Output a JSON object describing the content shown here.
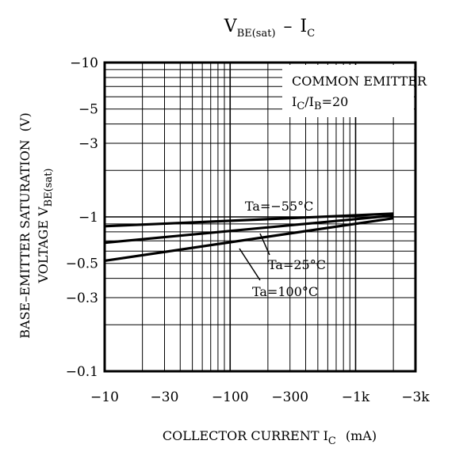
{
  "chart_data": {
    "type": "line",
    "title": {
      "main": "V",
      "main_sub": "BE(sat)",
      "dash": "–",
      "right": "I",
      "right_sub": "C"
    },
    "xlabel": {
      "text": "COLLECTOR CURRENT I",
      "sub": "C",
      "unit": "(mA)"
    },
    "ylabel": {
      "line1": "BASE–EMITTER SATURATION",
      "line1_unit": "(V)",
      "line2": "VOLTAGE V",
      "line2_sub": "BE(sat)"
    },
    "xscale": "log",
    "yscale": "log",
    "xlim": [
      -10,
      -3000
    ],
    "ylim": [
      -0.1,
      -10
    ],
    "grid": true,
    "x_ticks": [
      {
        "value": -10,
        "label": "−10"
      },
      {
        "value": -30,
        "label": "−30"
      },
      {
        "value": -100,
        "label": "−100"
      },
      {
        "value": -300,
        "label": "−300"
      },
      {
        "value": -1000,
        "label": "−1k"
      },
      {
        "value": -3000,
        "label": "−3k"
      }
    ],
    "y_ticks": [
      {
        "value": -10,
        "label": "−10"
      },
      {
        "value": -5,
        "label": "−5"
      },
      {
        "value": -3,
        "label": "−3"
      },
      {
        "value": -1,
        "label": "−1"
      },
      {
        "value": -0.5,
        "label": "−0.5"
      },
      {
        "value": -0.3,
        "label": "−0.3"
      },
      {
        "value": -0.1,
        "label": "−0.1"
      }
    ],
    "annotation": {
      "line1": "COMMON EMITTER",
      "line2_a": "I",
      "line2_sub_a": "C",
      "line2_b": "/I",
      "line2_sub_b": "B",
      "line2_c": "=20"
    },
    "series": [
      {
        "name": "Ta=−55°C",
        "x": [
          -10,
          -2000
        ],
        "y": [
          -0.87,
          -1.05
        ]
      },
      {
        "name": "Ta=25°C",
        "x": [
          -10,
          -2000
        ],
        "y": [
          -0.68,
          -1.02
        ]
      },
      {
        "name": "Ta=100°C",
        "x": [
          -10,
          -2000
        ],
        "y": [
          -0.52,
          -0.98
        ]
      }
    ]
  }
}
